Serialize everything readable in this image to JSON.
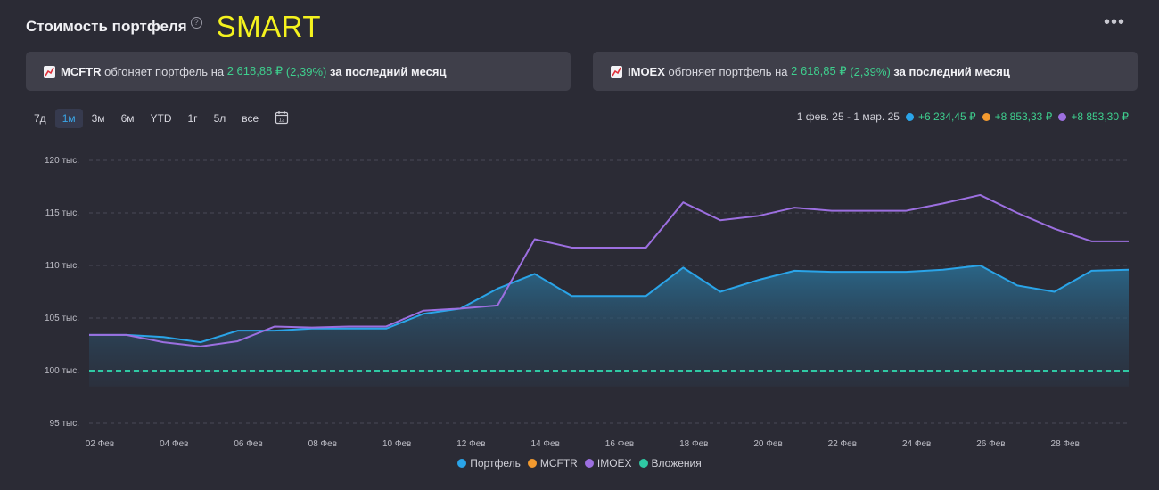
{
  "header": {
    "title": "Стоимость портфеля",
    "help_icon": "?",
    "brand": "SMART",
    "more_icon": "•••"
  },
  "banners": [
    {
      "index": "MCFTR",
      "text1": " обгоняет портфель на ",
      "amount": "2 618,88 ₽",
      "pct": "(2,39%)",
      "text2": " за последний месяц"
    },
    {
      "index": "IMOEX",
      "text1": " обгоняет портфель на ",
      "amount": "2 618,85 ₽",
      "pct": "(2,39%)",
      "text2": " за последний месяц"
    }
  ],
  "periods": [
    "7д",
    "1м",
    "3м",
    "6м",
    "YTD",
    "1г",
    "5л",
    "все"
  ],
  "active_period": "1м",
  "summary": {
    "range": "1 фев. 25 - 1 мар. 25",
    "values": [
      {
        "color": "#2aa4e8",
        "text": "+6 234,45 ₽"
      },
      {
        "color": "#f39a2f",
        "text": "+8 853,33 ₽"
      },
      {
        "color": "#9c6fe0",
        "text": "+8 853,30 ₽"
      }
    ]
  },
  "legend": [
    {
      "name": "Портфель",
      "color": "#2aa4e8"
    },
    {
      "name": "MCFTR",
      "color": "#f39a2f"
    },
    {
      "name": "IMOEX",
      "color": "#9c6fe0"
    },
    {
      "name": "Вложения",
      "color": "#2fc9a4"
    }
  ],
  "chart_data": {
    "type": "area",
    "x": [
      "02 Фев",
      "03 Фев",
      "04 Фев",
      "05 Фев",
      "06 Фев",
      "07 Фев",
      "08 Фев",
      "09 Фев",
      "10 Фев",
      "11 Фев",
      "12 Фев",
      "13 Фев",
      "14 Фев",
      "15 Фев",
      "16 Фев",
      "17 Фев",
      "18 Фев",
      "19 Фев",
      "20 Фев",
      "21 Фев",
      "22 Фев",
      "23 Фев",
      "24 Фев",
      "25 Фев",
      "26 Фев",
      "27 Фев",
      "28 Фев",
      "01 Мар",
      "02 Мар"
    ],
    "xticks": [
      "02 Фев",
      "04 Фев",
      "06 Фев",
      "08 Фев",
      "10 Фев",
      "12 Фев",
      "14 Фев",
      "16 Фев",
      "18 Фев",
      "20 Фев",
      "22 Фев",
      "24 Фев",
      "26 Фев",
      "28 Фев"
    ],
    "yticks": [
      {
        "value": 95000,
        "label": "95 тыс."
      },
      {
        "value": 100000,
        "label": "100 тыс."
      },
      {
        "value": 105000,
        "label": "105 тыс."
      },
      {
        "value": 110000,
        "label": "110 тыс."
      },
      {
        "value": 115000,
        "label": "115 тыс."
      },
      {
        "value": 120000,
        "label": "120 тыс."
      }
    ],
    "ylim": [
      95000,
      120000
    ],
    "grid": true,
    "series": [
      {
        "name": "Портфель",
        "color": "#2aa4e8",
        "values": [
          103400,
          103400,
          103200,
          102700,
          103800,
          103800,
          104000,
          104000,
          104000,
          105400,
          105900,
          107800,
          109200,
          107100,
          107100,
          107100,
          109800,
          107500,
          108600,
          109500,
          109400,
          109400,
          109400,
          109600,
          110000,
          108100,
          107500,
          109500,
          109600
        ]
      },
      {
        "name": "IMOEX",
        "color": "#9c6fe0",
        "values": [
          103400,
          103400,
          102700,
          102300,
          102800,
          104200,
          104100,
          104200,
          104200,
          105700,
          105900,
          106200,
          112500,
          111700,
          111700,
          111700,
          116000,
          114300,
          114700,
          115500,
          115200,
          115200,
          115200,
          115900,
          116700,
          115000,
          113500,
          112300,
          112300
        ]
      },
      {
        "name": "Вложения",
        "color": "#2fc9a4",
        "values": [
          100000,
          100000,
          100000,
          100000,
          100000,
          100000,
          100000,
          100000,
          100000,
          100000,
          100000,
          100000,
          100000,
          100000,
          100000,
          100000,
          100000,
          100000,
          100000,
          100000,
          100000,
          100000,
          100000,
          100000,
          100000,
          100000,
          100000,
          100000,
          100000
        ]
      }
    ]
  }
}
